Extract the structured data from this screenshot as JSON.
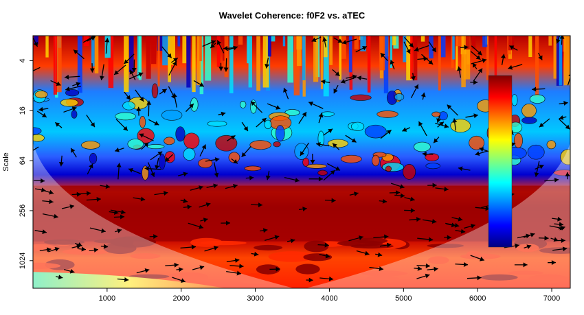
{
  "chart_data": {
    "type": "heatmap",
    "title": "Wavelet Coherence: f0F2 vs. aTEC",
    "xlabel": "",
    "ylabel": "Scale",
    "x_ticks": [
      1000,
      2000,
      3000,
      4000,
      5000,
      6000,
      7000
    ],
    "y_ticks": [
      4,
      16,
      64,
      256,
      1024
    ],
    "y_scale": "log2",
    "xlim": [
      0,
      7250
    ],
    "ylim": [
      2,
      2200
    ],
    "colorbar": {
      "min": 0,
      "max": 1,
      "colors": [
        "#00007f",
        "#0000ff",
        "#007fff",
        "#00ffff",
        "#7fff7f",
        "#ffff00",
        "#ff7f00",
        "#ff0000",
        "#7f0000"
      ],
      "placement": "inset-right"
    },
    "overlays": {
      "significance_contours": true,
      "phase_arrows": true,
      "cone_of_influence": true
    },
    "coherence_bands": [
      {
        "scale_from": 2,
        "scale_to": 12,
        "level": "mixed high"
      },
      {
        "scale_from": 12,
        "scale_to": 110,
        "level": "mostly low, high patches"
      },
      {
        "scale_from": 110,
        "scale_to": 600,
        "level": "high"
      },
      {
        "scale_from": 600,
        "scale_to": 1800,
        "level": "high, decreasing toward edges"
      }
    ]
  }
}
